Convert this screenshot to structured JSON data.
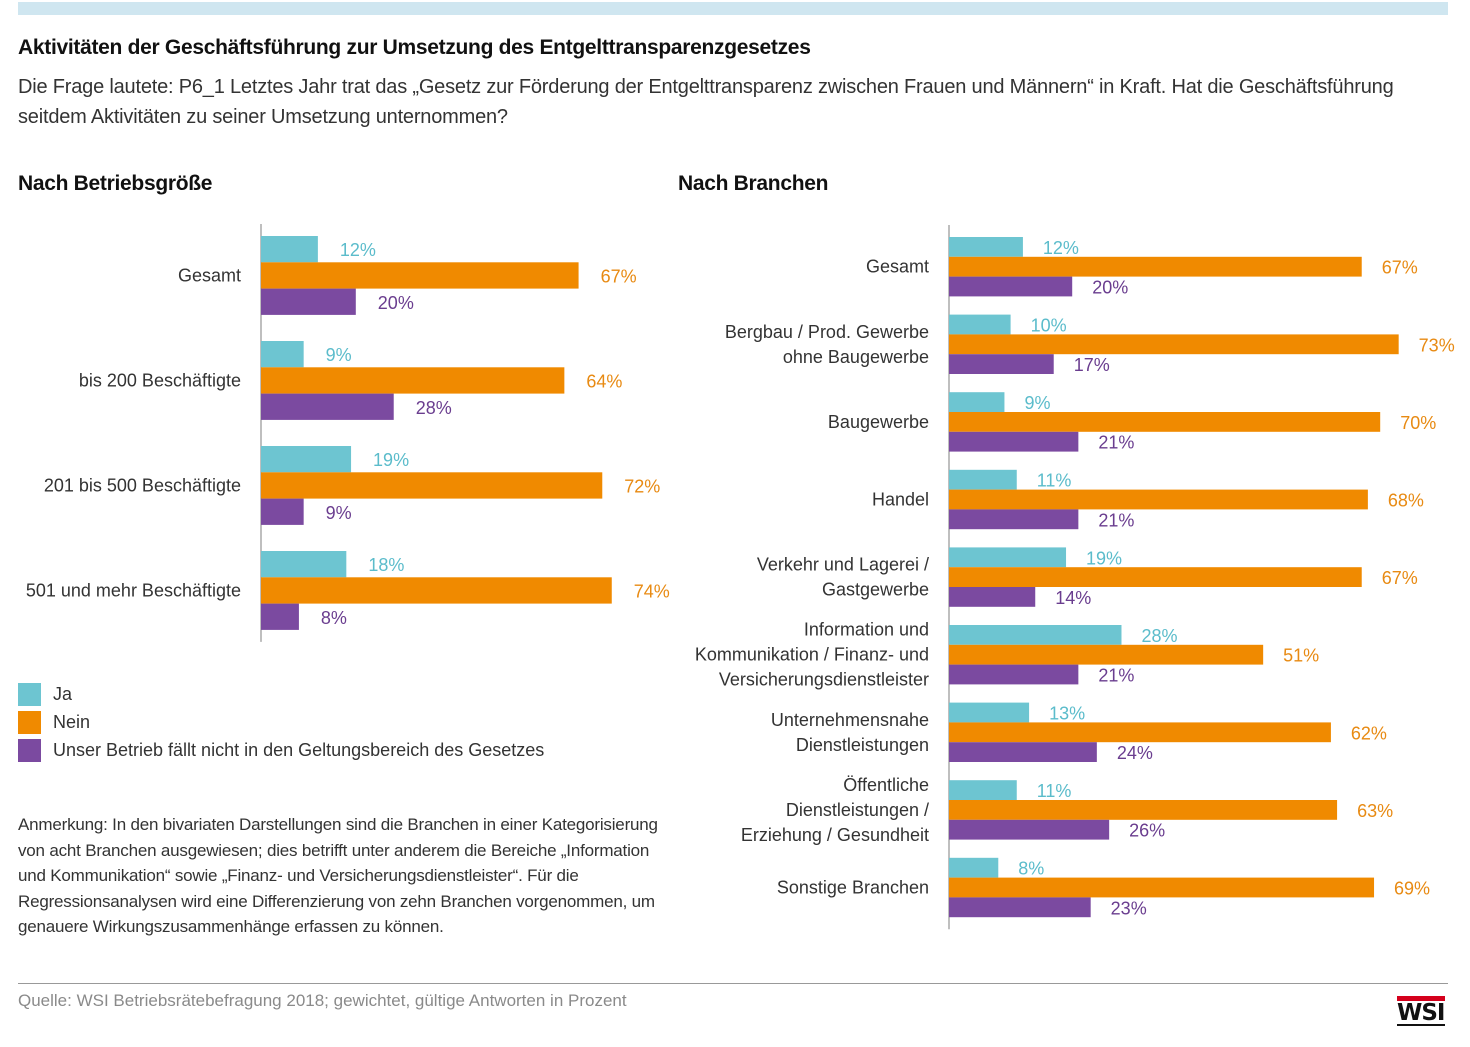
{
  "header": {
    "title": "Aktivitäten der Geschäftsführung zur Umsetzung des Entgelttransparenzgesetzes",
    "question": "Die Frage lautete: P6_1 Letztes Jahr trat das „Gesetz zur Förderung der Entgelttransparenz zwischen Frauen und Männern“ in Kraft. Hat die Geschäftsführung seitdem Aktivitäten zu seiner Umsetzung unternommen?"
  },
  "colors": {
    "ja": "#6dc5d1",
    "nein": "#f08a00",
    "none": "#7b4aa0",
    "topbar": "#cfe6f0"
  },
  "legend": {
    "items": [
      {
        "label": "Ja",
        "color": "#6dc5d1"
      },
      {
        "label": "Nein",
        "color": "#f08a00"
      },
      {
        "label": "Unser Betrieb fällt nicht in den Geltungsbereich des Gesetzes",
        "color": "#7b4aa0"
      }
    ]
  },
  "note": "Anmerkung: In den bivariaten Darstellungen sind die Branchen in einer Kategorisierung von acht Branchen ausgewiesen; dies betrifft unter anderem die Bereiche „Information und Kommunikation“ sowie „Finanz- und Versicherungsdienstleister“. Für die Regressionsanalysen wird eine Differenzierung von zehn Branchen vorgenommen, um genauere Wirkungszusammenhänge erfassen zu können.",
  "source": "Quelle: WSI Betriebsrätebefragung 2018; gewichtet, gültige Antworten in Prozent",
  "logo": {
    "text": "WSI"
  },
  "chart_data": [
    {
      "type": "bar",
      "orientation": "horizontal",
      "title": "Nach Betriebsgröße",
      "unit": "%",
      "categories": [
        [
          "Gesamt"
        ],
        [
          "bis 200 Beschäftigte"
        ],
        [
          "201 bis 500 Beschäftigte"
        ],
        [
          "501 und mehr Beschäftigte"
        ]
      ],
      "series": [
        {
          "name": "Ja",
          "values": [
            12,
            9,
            19,
            18
          ]
        },
        {
          "name": "Nein",
          "values": [
            67,
            64,
            72,
            74
          ]
        },
        {
          "name": "Unser Betrieb fällt nicht in den Geltungsbereich des Gesetzes",
          "values": [
            20,
            28,
            9,
            8
          ]
        }
      ],
      "xlim": [
        0,
        80
      ]
    },
    {
      "type": "bar",
      "orientation": "horizontal",
      "title": "Nach Branchen",
      "unit": "%",
      "categories": [
        [
          "Gesamt"
        ],
        [
          "Bergbau / Prod. Gewerbe",
          "ohne Baugewerbe"
        ],
        [
          "Baugewerbe"
        ],
        [
          "Handel"
        ],
        [
          "Verkehr und Lagerei /",
          "Gastgewerbe"
        ],
        [
          "Information und",
          "Kommunikation / Finanz- und",
          "Versicherungsdienstleister"
        ],
        [
          "Unternehmensnahe",
          "Dienstleistungen"
        ],
        [
          "Öffentliche",
          "Dienstleistungen /",
          "Erziehung / Gesundheit"
        ],
        [
          "Sonstige Branchen"
        ]
      ],
      "series": [
        {
          "name": "Ja",
          "values": [
            12,
            10,
            9,
            11,
            19,
            28,
            13,
            11,
            8
          ]
        },
        {
          "name": "Nein",
          "values": [
            67,
            73,
            70,
            68,
            67,
            51,
            62,
            63,
            69
          ]
        },
        {
          "name": "Unser Betrieb fällt nicht in den Geltungsbereich des Gesetzes",
          "values": [
            20,
            17,
            21,
            21,
            14,
            21,
            24,
            26,
            23
          ]
        }
      ],
      "xlim": [
        0,
        80
      ]
    }
  ]
}
